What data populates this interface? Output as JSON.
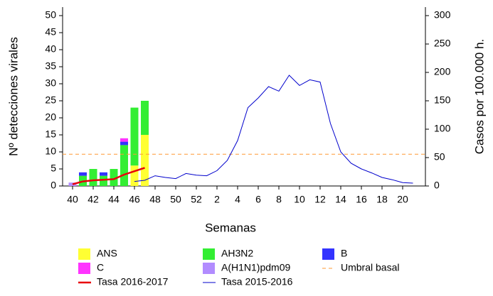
{
  "chart_data": {
    "type": "bar",
    "stacked": true,
    "xlabel": "Semanas",
    "ylabel": "Nº detecciones virales",
    "y2label": "Casos por 100.000 h.",
    "categories": [
      "40",
      null,
      "42",
      null,
      "44",
      null,
      "46",
      null,
      "48",
      null,
      "50",
      null,
      "52",
      null,
      "2",
      null,
      "4",
      null,
      "6",
      null,
      "8",
      null,
      "10",
      null,
      "12",
      null,
      "14",
      null,
      "16",
      null,
      "18",
      null,
      "20",
      null
    ],
    "series": [
      {
        "name": "ANS",
        "color": "#ffff33",
        "values": [
          0,
          0,
          0,
          0,
          0,
          0,
          6,
          15,
          null,
          null,
          null,
          null,
          null,
          null,
          null,
          null,
          null,
          null,
          null,
          null,
          null,
          null,
          null,
          null,
          null,
          null,
          null,
          null,
          null,
          null,
          null,
          null,
          null,
          null
        ]
      },
      {
        "name": "AH3N2",
        "color": "#33ee33",
        "values": [
          0,
          3,
          5,
          3,
          5,
          12,
          17,
          10,
          null,
          null,
          null,
          null,
          null,
          null,
          null,
          null,
          null,
          null,
          null,
          null,
          null,
          null,
          null,
          null,
          null,
          null,
          null,
          null,
          null,
          null,
          null,
          null,
          null,
          null
        ]
      },
      {
        "name": "A(H1N1)pdm09",
        "color": "#b28cff",
        "values": [
          1,
          0,
          0,
          0,
          0,
          0,
          0,
          0,
          null,
          null,
          null,
          null,
          null,
          null,
          null,
          null,
          null,
          null,
          null,
          null,
          null,
          null,
          null,
          null,
          null,
          null,
          null,
          null,
          null,
          null,
          null,
          null,
          null,
          null
        ]
      },
      {
        "name": "B",
        "color": "#3333ff",
        "values": [
          0,
          1,
          0,
          1,
          0,
          1,
          0,
          0,
          null,
          null,
          null,
          null,
          null,
          null,
          null,
          null,
          null,
          null,
          null,
          null,
          null,
          null,
          null,
          null,
          null,
          null,
          null,
          null,
          null,
          null,
          null,
          null,
          null,
          null
        ]
      },
      {
        "name": "C",
        "color": "#ff33ff",
        "values": [
          0,
          0,
          0,
          0,
          0,
          1,
          0,
          0,
          null,
          null,
          null,
          null,
          null,
          null,
          null,
          null,
          null,
          null,
          null,
          null,
          null,
          null,
          null,
          null,
          null,
          null,
          null,
          null,
          null,
          null,
          null,
          null,
          null,
          null
        ]
      },
      {
        "name": "Tasa 2016-2017",
        "type": "line",
        "axis": "y2",
        "color": "#e8000b",
        "width": 2.5,
        "values": [
          3,
          8,
          10,
          11,
          12,
          20,
          26,
          32,
          null,
          null,
          null,
          null,
          null,
          null,
          null,
          null,
          null,
          null,
          null,
          null,
          null,
          null,
          null,
          null,
          null,
          null,
          null,
          null,
          null,
          null,
          null,
          null,
          null,
          null
        ]
      },
      {
        "name": "Tasa 2015-2016",
        "type": "line",
        "axis": "y2",
        "color": "#0000cc",
        "width": 1,
        "values": [
          null,
          null,
          null,
          null,
          null,
          null,
          8,
          10,
          18,
          15,
          13,
          22,
          19,
          18,
          27,
          45,
          80,
          138,
          155,
          175,
          167,
          195,
          177,
          187,
          183,
          110,
          60,
          40,
          30,
          23,
          15,
          11,
          6,
          5
        ]
      }
    ],
    "reference_lines": [
      {
        "name": "Umbral basal",
        "value": 56,
        "axis": "y2",
        "color": "#ff9933",
        "style": "dashed"
      }
    ],
    "ylim": [
      0,
      52.5
    ],
    "yticks": [
      0,
      5,
      10,
      15,
      20,
      25,
      30,
      35,
      40,
      45,
      50
    ],
    "y2lim": [
      0,
      315
    ],
    "y2ticks": [
      0,
      50,
      100,
      150,
      200,
      250,
      300
    ]
  }
}
